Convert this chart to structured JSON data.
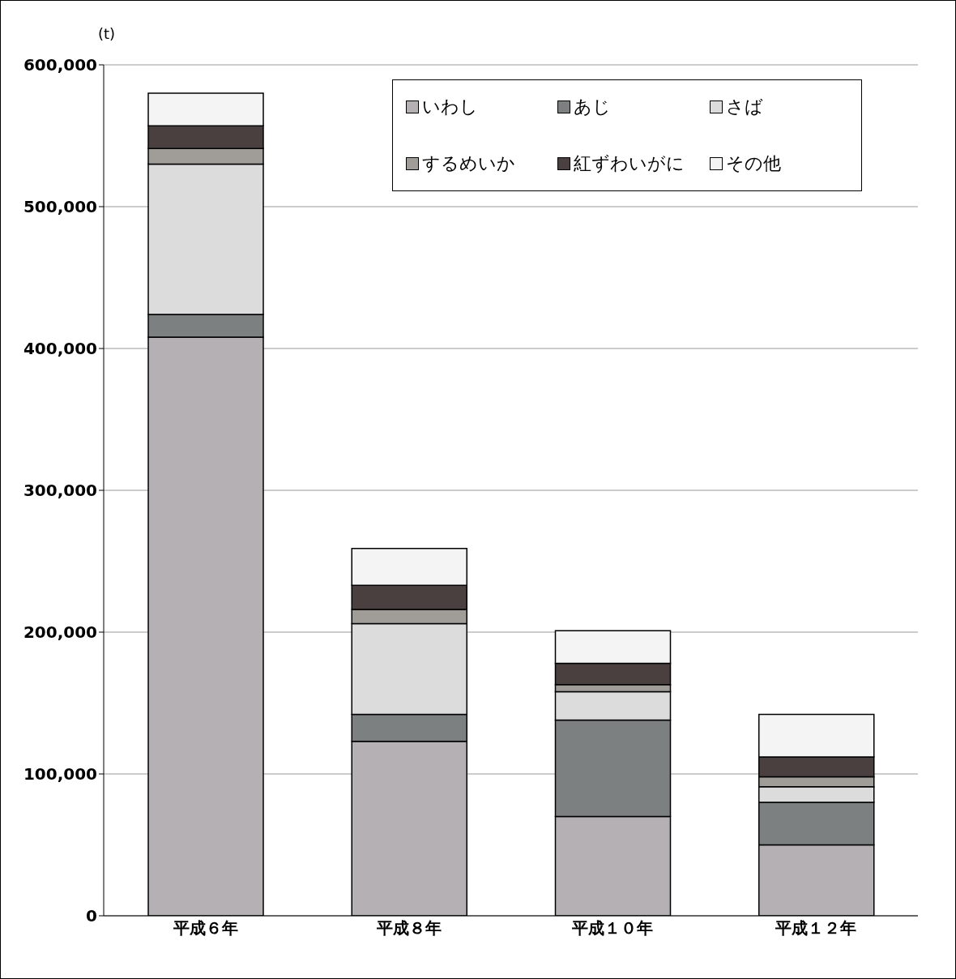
{
  "chart_data": {
    "type": "bar",
    "stacked": true,
    "ylabel": "(t)",
    "categories": [
      "平成６年",
      "平成８年",
      "平成１０年",
      "平成１２年"
    ],
    "series": [
      {
        "name": "いわし",
        "color": "#b4b0b4",
        "values": [
          408000,
          123000,
          70000,
          50000
        ]
      },
      {
        "name": "あじ",
        "color": "#7c8080",
        "values": [
          16000,
          19000,
          68000,
          30000
        ]
      },
      {
        "name": "さば",
        "color": "#dcdcdc",
        "values": [
          106000,
          64000,
          20000,
          11000
        ]
      },
      {
        "name": "するめいか",
        "color": "#a09c98",
        "values": [
          11000,
          10000,
          5000,
          7000
        ]
      },
      {
        "name": "紅ずわいがに",
        "color": "#4a4040",
        "values": [
          16000,
          17000,
          15000,
          14000
        ]
      },
      {
        "name": "その他",
        "color": "#f4f4f4",
        "values": [
          23000,
          26000,
          23000,
          30000
        ]
      }
    ],
    "ylim": [
      0,
      600000
    ],
    "yticks": [
      0,
      {
        "value": 100000,
        "label": "100,000"
      },
      {
        "value": 200000,
        "label": "200,000"
      },
      {
        "value": 300000,
        "label": "300,000"
      },
      {
        "value": 400000,
        "label": "400,000"
      },
      {
        "value": 500000,
        "label": "500,000"
      },
      {
        "value": 600000,
        "label": "600,000"
      }
    ],
    "grid": "y",
    "legend": "top right"
  }
}
